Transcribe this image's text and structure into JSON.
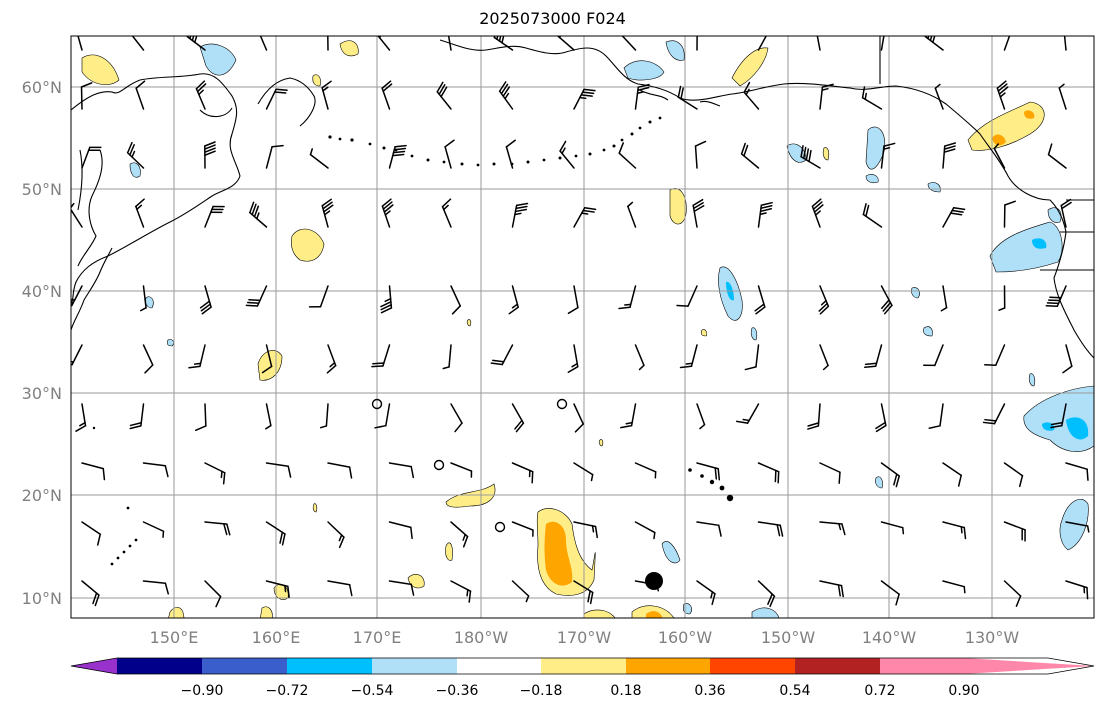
{
  "title": "2025073000 F024",
  "map": {
    "lon_labels": [
      "150°E",
      "160°E",
      "170°E",
      "180°W",
      "170°W",
      "160°W",
      "150°W",
      "140°W",
      "130°W"
    ],
    "lat_labels": [
      "60°N",
      "50°N",
      "40°N",
      "30°N",
      "20°N",
      "10°N"
    ]
  },
  "colorbar": {
    "levels": [
      "−0.90",
      "−0.72",
      "−0.54",
      "−0.36",
      "−0.18",
      "0.18",
      "0.36",
      "0.54",
      "0.72",
      "0.90"
    ],
    "colors": [
      "#9932cc",
      "#00008b",
      "#3a5fcd",
      "#00bfff",
      "#b0e0f8",
      "#ffffff",
      "#ffee88",
      "#ffa500",
      "#ff4500",
      "#b22222",
      "#ff88aa"
    ]
  },
  "shading_colors": {
    "light_blue": "#b0e0f8",
    "blue": "#00bfff",
    "yellow": "#ffee88",
    "orange": "#ffa500"
  },
  "markers": {
    "storm": "filled-circle",
    "calm": "open-circle"
  }
}
